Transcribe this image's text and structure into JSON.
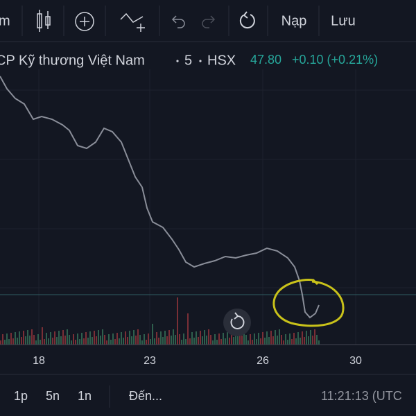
{
  "toolbar": {
    "left_label": "m",
    "buttons": [
      "Nạp",
      "Lưu"
    ]
  },
  "symbol": {
    "name": "CP Kỹ thương Việt Nam",
    "interval": "5",
    "exchange": "HSX",
    "price": "47.80",
    "change": "+0.10 (+0.21%)"
  },
  "x_axis": {
    "ticks": [
      "18",
      "23",
      "26",
      "30"
    ]
  },
  "bottom_bar": {
    "ranges": [
      "1p",
      "5n",
      "1n"
    ],
    "goto": "Đến...",
    "time": "11:21:13 (UTC"
  }
}
